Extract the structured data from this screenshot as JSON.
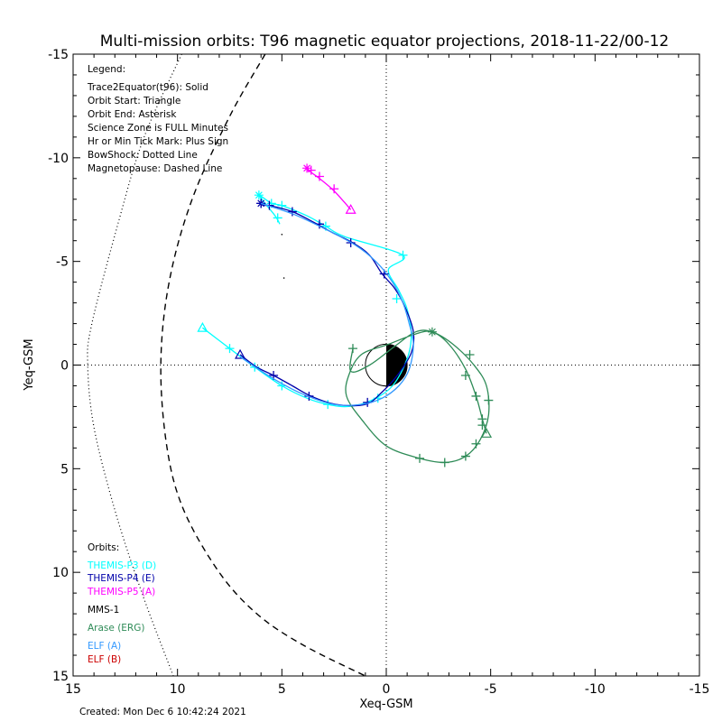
{
  "chart_data": {
    "type": "line",
    "title": "Multi-mission orbits: T96 magnetic equator projections, 2018-11-22/00-12",
    "xlabel": "Xeq-GSM",
    "ylabel": "Yeq-GSM",
    "xlim": [
      15,
      -15
    ],
    "ylim": [
      -15,
      15
    ],
    "x_ticks": [
      15,
      10,
      5,
      0,
      -5,
      -10,
      -15
    ],
    "y_ticks": [
      -15,
      -10,
      -5,
      0,
      5,
      10,
      15
    ],
    "x_tick_labels": [
      "15",
      "10",
      "5",
      "0",
      "-5",
      "-10",
      "-15"
    ],
    "y_tick_labels": [
      "-15",
      "-10",
      "-5",
      "0",
      "5",
      "10",
      "15"
    ],
    "grid": false,
    "legend_placement": "top-left",
    "legend_title": "Legend:",
    "legend_lines": [
      "Trace2Equator(t96): Solid",
      "Orbit Start: Triangle",
      "Orbit End: Asterisk",
      "Science Zone is FULL Minutes",
      "Hr or Min Tick Mark: Plus Sign",
      "BowShock: Dotted Line",
      "Magnetopause: Dashed Line"
    ],
    "orbits_title": "Orbits:",
    "orbit_labels": [
      {
        "text": "THEMIS-P3 (D)",
        "color": "#00ffff"
      },
      {
        "text": "THEMIS-P4 (E)",
        "color": "#0000aa"
      },
      {
        "text": "THEMIS-P5 (A)",
        "color": "#ff00ff"
      },
      {
        "text": "MMS-1",
        "color": "#000000"
      },
      {
        "text": "Arase (ERG)",
        "color": "#2e8b57"
      },
      {
        "text": "ELF (A)",
        "color": "#3399ff"
      },
      {
        "text": "ELF (B)",
        "color": "#cc0000"
      }
    ],
    "footer": "Created: Mon Dec  6 10:42:24 2021",
    "bowshock": {
      "color": "#000000",
      "points": [
        [
          9.8,
          -15
        ],
        [
          11.6,
          -11
        ],
        [
          12.8,
          -7
        ],
        [
          14.1,
          -2
        ],
        [
          14.3,
          0
        ],
        [
          14.0,
          3
        ],
        [
          13.0,
          7
        ],
        [
          11.7,
          11
        ],
        [
          10.2,
          15
        ]
      ]
    },
    "magnetopause": {
      "color": "#000000",
      "points": [
        [
          5.8,
          -15
        ],
        [
          7.5,
          -12
        ],
        [
          9.3,
          -8
        ],
        [
          10.4,
          -4
        ],
        [
          10.8,
          0
        ],
        [
          10.5,
          4
        ],
        [
          9.7,
          7
        ],
        [
          8.0,
          10
        ],
        [
          6.2,
          12
        ],
        [
          4.0,
          13.5
        ],
        [
          1.0,
          15
        ]
      ]
    },
    "earth": {
      "radius": 1.0
    },
    "series": [
      {
        "name": "THEMIS-P3 (D)",
        "color": "#00ffff",
        "points": [
          [
            8.8,
            -1.8
          ],
          [
            7.5,
            -0.8
          ],
          [
            6.3,
            0.1
          ],
          [
            5.0,
            1.0
          ],
          [
            3.8,
            1.6
          ],
          [
            2.8,
            1.9
          ],
          [
            1.8,
            2.0
          ],
          [
            0.7,
            1.7
          ],
          [
            -0.3,
            1.0
          ],
          [
            -1.0,
            -0.3
          ],
          [
            -1.2,
            -1.5
          ],
          [
            -1.0,
            -2.7
          ],
          [
            -0.6,
            -3.6
          ],
          [
            -0.1,
            -4.6
          ],
          [
            -0.8,
            -5.3
          ],
          [
            2.0,
            -6.2
          ],
          [
            2.9,
            -6.7
          ],
          [
            3.8,
            -7.2
          ],
          [
            5.0,
            -7.7
          ],
          [
            5.5,
            -7.8
          ],
          [
            6.1,
            -8.2
          ],
          [
            5.4,
            -7.3
          ],
          [
            5.2,
            -7.0
          ],
          [
            5.1,
            -6.8
          ]
        ],
        "ticks": [
          [
            7.5,
            -0.8
          ],
          [
            6.3,
            0.1
          ],
          [
            5.0,
            1.0
          ],
          [
            2.8,
            1.9
          ],
          [
            0.4,
            1.6
          ],
          [
            -0.5,
            -3.2
          ],
          [
            -0.8,
            -5.3
          ],
          [
            2.9,
            -6.7
          ],
          [
            5.0,
            -7.7
          ],
          [
            5.5,
            -7.8
          ],
          [
            5.2,
            -7.1
          ]
        ],
        "start": [
          8.8,
          -1.8
        ],
        "end": [
          6.1,
          -8.2
        ]
      },
      {
        "name": "THEMIS-P4 (E)",
        "color": "#0000aa",
        "points": [
          [
            7.0,
            -0.5
          ],
          [
            6.2,
            0.1
          ],
          [
            5.4,
            0.5
          ],
          [
            4.5,
            1.0
          ],
          [
            3.6,
            1.5
          ],
          [
            2.4,
            1.9
          ],
          [
            1.0,
            1.9
          ],
          [
            0.2,
            1.3
          ],
          [
            -0.6,
            0.4
          ],
          [
            -1.2,
            -0.6
          ],
          [
            -1.3,
            -1.6
          ],
          [
            -0.9,
            -2.8
          ],
          [
            -0.4,
            -3.7
          ],
          [
            0.2,
            -4.4
          ],
          [
            0.8,
            -5.3
          ],
          [
            1.6,
            -5.9
          ],
          [
            2.6,
            -6.4
          ],
          [
            3.5,
            -6.9
          ],
          [
            4.5,
            -7.4
          ],
          [
            5.6,
            -7.7
          ],
          [
            5.9,
            -7.7
          ],
          [
            6.0,
            -7.8
          ]
        ],
        "ticks": [
          [
            5.4,
            0.5
          ],
          [
            3.7,
            1.5
          ],
          [
            0.9,
            1.8
          ],
          [
            0.1,
            -4.4
          ],
          [
            1.7,
            -5.9
          ],
          [
            3.2,
            -6.8
          ],
          [
            4.5,
            -7.4
          ],
          [
            5.6,
            -7.7
          ],
          [
            6.0,
            -7.8
          ]
        ],
        "start": [
          7.0,
          -0.5
        ],
        "end": [
          6.0,
          -7.8
        ]
      },
      {
        "name": "THEMIS-P5 (A)",
        "color": "#ff00ff",
        "points": [
          [
            1.7,
            -7.5
          ],
          [
            2.5,
            -8.4
          ],
          [
            3.2,
            -9.0
          ],
          [
            3.6,
            -9.3
          ],
          [
            3.8,
            -9.5
          ],
          [
            3.7,
            -9.3
          ]
        ],
        "ticks": [
          [
            2.5,
            -8.5
          ],
          [
            3.2,
            -9.1
          ],
          [
            3.6,
            -9.4
          ]
        ],
        "start": [
          1.7,
          -7.5
        ],
        "end": [
          3.8,
          -9.5
        ]
      },
      {
        "name": "Arase (ERG)",
        "color": "#2e8b57",
        "points": [
          [
            -4.8,
            3.3
          ],
          [
            -4.6,
            2.6
          ],
          [
            -4.3,
            1.5
          ],
          [
            -3.8,
            0.2
          ],
          [
            -3.0,
            -1.0
          ],
          [
            -2.2,
            -1.6
          ],
          [
            -1.4,
            -1.5
          ],
          [
            -0.1,
            -1.0
          ],
          [
            1.2,
            -0.5
          ],
          [
            1.8,
            0.5
          ],
          [
            1.9,
            1.5
          ],
          [
            1.2,
            2.6
          ],
          [
            0.0,
            3.9
          ],
          [
            -1.6,
            4.5
          ],
          [
            -2.8,
            4.7
          ],
          [
            -3.8,
            4.4
          ],
          [
            -4.5,
            3.6
          ],
          [
            -4.9,
            2.4
          ],
          [
            -4.8,
            1.0
          ],
          [
            -4.2,
            0.0
          ],
          [
            -3.2,
            -1.0
          ],
          [
            -2.2,
            -1.6
          ],
          [
            -1.4,
            -1.6
          ],
          [
            -0.4,
            -0.9
          ],
          [
            0.8,
            0.0
          ],
          [
            1.7,
            0.3
          ],
          [
            1.6,
            -0.8
          ]
        ],
        "ticks": [
          [
            -4.6,
            2.6
          ],
          [
            -4.3,
            1.5
          ],
          [
            -3.8,
            0.5
          ],
          [
            -1.6,
            4.5
          ],
          [
            -2.8,
            4.7
          ],
          [
            -3.8,
            4.4
          ],
          [
            -4.3,
            3.8
          ],
          [
            -4.6,
            2.9
          ],
          [
            -4.9,
            1.7
          ],
          [
            -4.0,
            -0.5
          ],
          [
            1.6,
            -0.8
          ]
        ],
        "start": [
          -4.8,
          3.3
        ],
        "end": [
          -2.2,
          -1.6
        ]
      },
      {
        "name": "ELF (A)",
        "color": "#3399ff",
        "points": [
          [
            6.0,
            -7.8
          ],
          [
            4.5,
            -7.3
          ],
          [
            3.0,
            -6.6
          ],
          [
            1.5,
            -5.8
          ],
          [
            0.5,
            -5.0
          ],
          [
            -0.3,
            -4.0
          ],
          [
            -0.8,
            -3.0
          ],
          [
            -1.1,
            -2.0
          ],
          [
            -1.3,
            -1.0
          ],
          [
            -1.1,
            0.2
          ],
          [
            -0.6,
            1.0
          ],
          [
            0.2,
            1.6
          ],
          [
            1.2,
            1.9
          ],
          [
            2.5,
            1.9
          ],
          [
            4.0,
            1.4
          ],
          [
            5.5,
            0.6
          ],
          [
            7.0,
            -0.4
          ]
        ],
        "ticks": [],
        "start": null,
        "end": null
      }
    ],
    "extra_dots": [
      [
        5.0,
        -6.3
      ],
      [
        4.9,
        -4.2
      ]
    ]
  }
}
